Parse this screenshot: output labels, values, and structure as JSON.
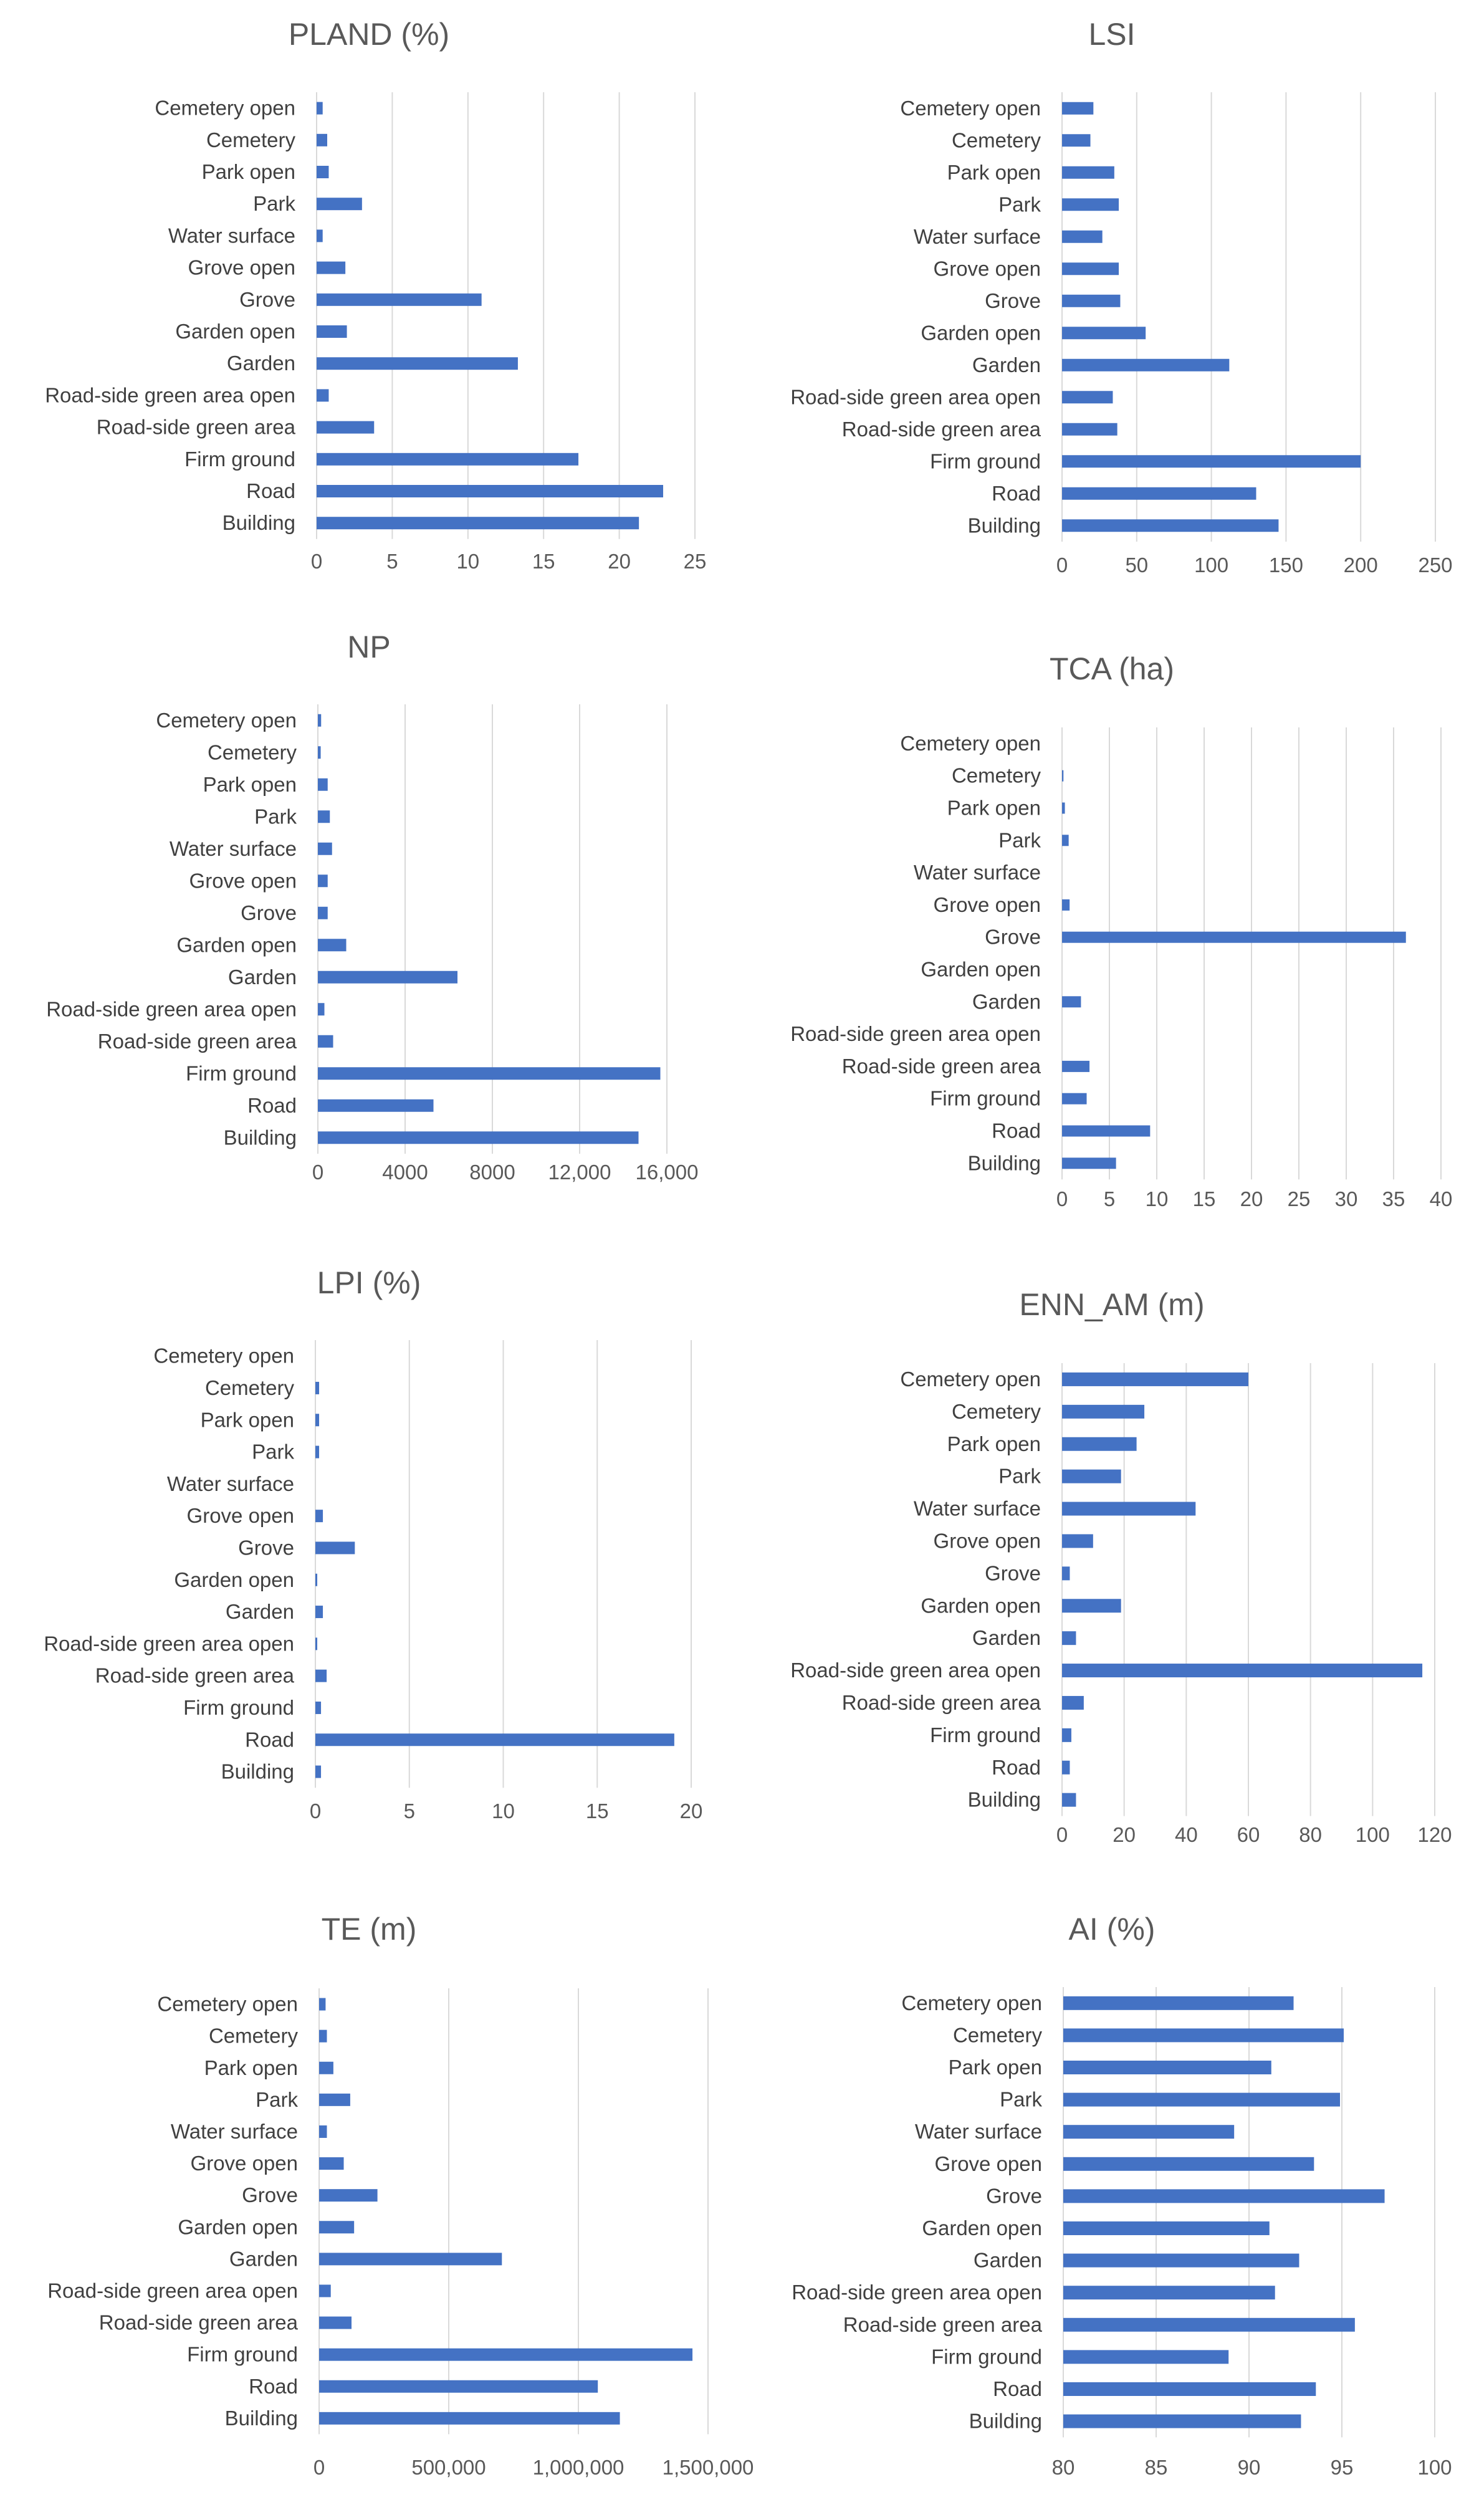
{
  "chart_data": [
    {
      "type": "bar",
      "orientation": "horizontal",
      "title": "PLAND (%)",
      "categories": [
        "Building",
        "Road",
        "Firm ground",
        "Road-side green area",
        "Road-side green area open",
        "Garden",
        "Garden open",
        "Grove",
        "Grove open",
        "Water surface",
        "Park",
        "Park open",
        "Cemetery",
        "Cemetery open"
      ],
      "values": [
        21.3,
        22.9,
        17.3,
        3.8,
        0.8,
        13.3,
        2.0,
        10.9,
        1.9,
        0.4,
        3.0,
        0.8,
        0.7,
        0.4
      ],
      "xlim": [
        0,
        25
      ],
      "ticks": [
        0,
        5,
        10,
        15,
        20,
        25
      ],
      "tick_labels": [
        "0",
        "5",
        "10",
        "15",
        "20",
        "25"
      ]
    },
    {
      "type": "bar",
      "orientation": "horizontal",
      "title": "LSI",
      "categories": [
        "Building",
        "Road",
        "Firm ground",
        "Road-side green area",
        "Road-side green area open",
        "Garden",
        "Garden open",
        "Grove",
        "Grove open",
        "Water surface",
        "Park",
        "Park open",
        "Cemetery",
        "Cemetery open"
      ],
      "values": [
        145,
        130,
        200,
        37,
        34,
        112,
        56,
        39,
        38,
        27,
        38,
        35,
        19,
        21
      ],
      "xlim": [
        0,
        250
      ],
      "ticks": [
        0,
        50,
        100,
        150,
        200,
        250
      ],
      "tick_labels": [
        "0",
        "50",
        "100",
        "150",
        "200",
        "250"
      ]
    },
    {
      "type": "bar",
      "orientation": "horizontal",
      "title": "NP",
      "categories": [
        "Building",
        "Road",
        "Firm ground",
        "Road-side green area",
        "Road-side green area open",
        "Garden",
        "Garden open",
        "Grove",
        "Grove open",
        "Water surface",
        "Park",
        "Park open",
        "Cemetery",
        "Cemetery open"
      ],
      "values": [
        14700,
        5300,
        15700,
        700,
        300,
        6400,
        1300,
        450,
        450,
        650,
        550,
        450,
        130,
        150
      ],
      "xlim": [
        0,
        16000
      ],
      "ticks": [
        0,
        4000,
        8000,
        12000,
        16000
      ],
      "tick_labels": [
        "0",
        "4000",
        "8000",
        "12,000",
        "16,000"
      ]
    },
    {
      "type": "bar",
      "orientation": "horizontal",
      "title": "TCA (ha)",
      "categories": [
        "Building",
        "Road",
        "Firm ground",
        "Road-side green area",
        "Road-side green area open",
        "Garden",
        "Garden open",
        "Grove",
        "Grove open",
        "Water surface",
        "Park",
        "Park open",
        "Cemetery",
        "Cemetery open"
      ],
      "values": [
        5.7,
        9.3,
        2.6,
        2.9,
        0,
        2.0,
        0,
        36.3,
        0.8,
        0,
        0.7,
        0.3,
        0.15,
        0
      ],
      "xlim": [
        0,
        40
      ],
      "ticks": [
        0,
        5,
        10,
        15,
        20,
        25,
        30,
        35,
        40
      ],
      "tick_labels": [
        "0",
        "5",
        "10",
        "15",
        "20",
        "25",
        "30",
        "35",
        "40"
      ]
    },
    {
      "type": "bar",
      "orientation": "horizontal",
      "title": "LPI (%)",
      "categories": [
        "Building",
        "Road",
        "Firm ground",
        "Road-side green area",
        "Road-side green area open",
        "Garden",
        "Garden open",
        "Grove",
        "Grove open",
        "Water surface",
        "Park",
        "Park open",
        "Cemetery",
        "Cemetery open"
      ],
      "values": [
        0.3,
        19.1,
        0.3,
        0.6,
        0.1,
        0.4,
        0.1,
        2.1,
        0.4,
        0,
        0.2,
        0.2,
        0.2,
        0
      ],
      "xlim": [
        0,
        20
      ],
      "ticks": [
        0,
        5,
        10,
        15,
        20
      ],
      "tick_labels": [
        "0",
        "5",
        "10",
        "15",
        "20"
      ]
    },
    {
      "type": "bar",
      "orientation": "horizontal",
      "title": "ENN_AM (m)",
      "categories": [
        "Building",
        "Road",
        "Firm ground",
        "Road-side green area",
        "Road-side green area open",
        "Garden",
        "Garden open",
        "Grove",
        "Grove open",
        "Water surface",
        "Park",
        "Park open",
        "Cemetery",
        "Cemetery open"
      ],
      "values": [
        4.5,
        2.5,
        3.0,
        7,
        116,
        4.5,
        19,
        2.5,
        10,
        43,
        19,
        24,
        26.5,
        60
      ],
      "xlim": [
        0,
        120
      ],
      "ticks": [
        0,
        20,
        40,
        60,
        80,
        100,
        120
      ],
      "tick_labels": [
        "0",
        "20",
        "40",
        "60",
        "80",
        "100",
        "120"
      ]
    },
    {
      "type": "bar",
      "orientation": "horizontal",
      "title": "TE (m)",
      "categories": [
        "Building",
        "Road",
        "Firm ground",
        "Road-side green area",
        "Road-side green area open",
        "Garden",
        "Garden open",
        "Grove",
        "Grove open",
        "Water surface",
        "Park",
        "Park open",
        "Cemetery",
        "Cemetery open"
      ],
      "values": [
        1160000,
        1075000,
        1440000,
        125000,
        45000,
        705000,
        135000,
        225000,
        95000,
        30000,
        120000,
        55000,
        30000,
        25000
      ],
      "xlim": [
        0,
        1500000
      ],
      "ticks": [
        0,
        500000,
        1000000,
        1500000
      ],
      "tick_labels": [
        "0",
        "500,000",
        "1,000,000",
        "1,500,000"
      ]
    },
    {
      "type": "bar",
      "orientation": "horizontal",
      "title": "AI (%)",
      "categories": [
        "Building",
        "Road",
        "Firm ground",
        "Road-side green area",
        "Road-side green area open",
        "Garden",
        "Garden open",
        "Grove",
        "Grove open",
        "Water surface",
        "Park",
        "Park open",
        "Cemetery",
        "Cemetery open"
      ],
      "values": [
        92.8,
        93.6,
        88.9,
        95.7,
        91.4,
        92.7,
        91.1,
        97.3,
        93.5,
        89.2,
        94.9,
        91.2,
        95.1,
        92.4
      ],
      "xlim": [
        80,
        100
      ],
      "ticks": [
        80,
        85,
        90,
        95,
        100
      ],
      "tick_labels": [
        "80",
        "85",
        "90",
        "95",
        "100"
      ]
    }
  ]
}
